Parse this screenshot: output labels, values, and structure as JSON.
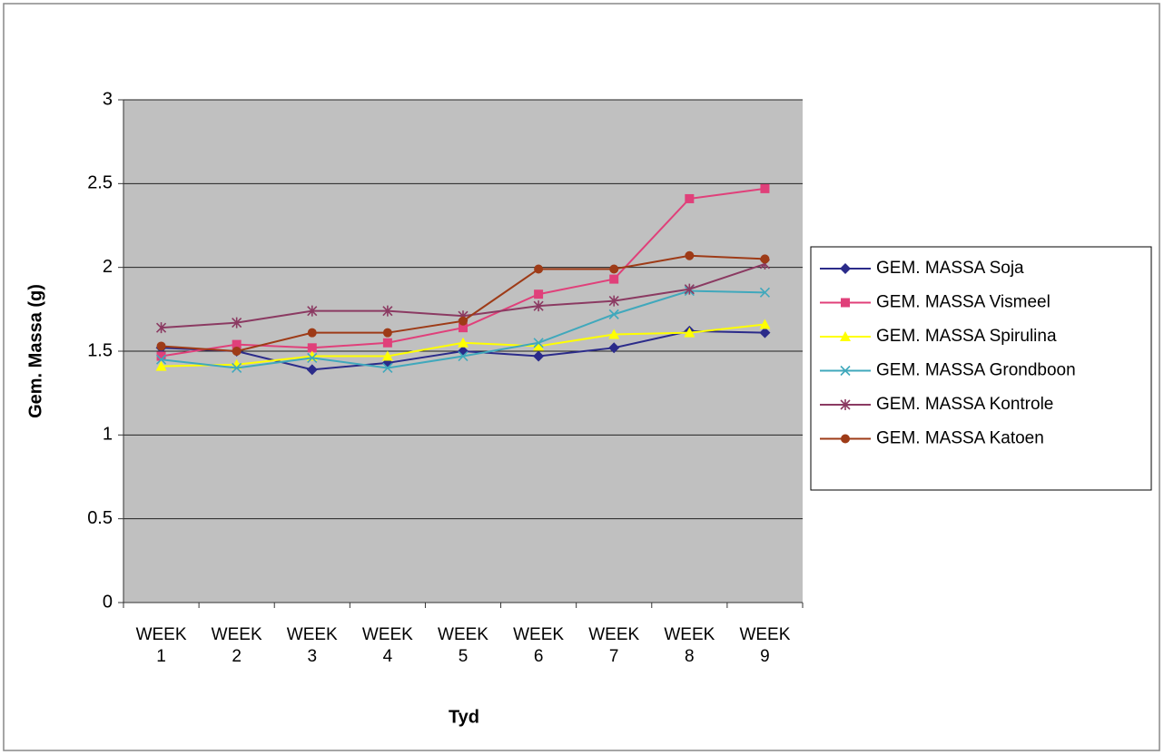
{
  "chart_data": {
    "type": "line",
    "x_label": "Tyd",
    "y_label": "Gem. Massa (g)",
    "categories": [
      "WEEK 1",
      "WEEK 2",
      "WEEK 3",
      "WEEK 4",
      "WEEK 5",
      "WEEK 6",
      "WEEK 7",
      "WEEK 8",
      "WEEK 9"
    ],
    "ylim": [
      0,
      3
    ],
    "yticks": [
      0,
      0.5,
      1,
      1.5,
      2,
      2.5,
      3
    ],
    "grid": true,
    "legend": "right",
    "series": [
      {
        "name": "GEM. MASSA Soja",
        "color": "#2b2b8a",
        "marker": "diamond",
        "values": [
          1.52,
          1.5,
          1.39,
          1.43,
          1.5,
          1.47,
          1.52,
          1.62,
          1.61
        ]
      },
      {
        "name": "GEM. MASSA Vismeel",
        "color": "#e0407a",
        "marker": "square",
        "values": [
          1.47,
          1.54,
          1.52,
          1.55,
          1.64,
          1.84,
          1.93,
          2.41,
          2.47
        ]
      },
      {
        "name": "GEM. MASSA Spirulina",
        "color": "#ffff00",
        "marker": "triangle",
        "values": [
          1.41,
          1.42,
          1.47,
          1.47,
          1.55,
          1.53,
          1.6,
          1.61,
          1.66
        ]
      },
      {
        "name": "GEM. MASSA Grondboon",
        "color": "#40a8bc",
        "marker": "x",
        "values": [
          1.45,
          1.4,
          1.46,
          1.4,
          1.47,
          1.55,
          1.72,
          1.86,
          1.85
        ]
      },
      {
        "name": "GEM. MASSA Kontrole",
        "color": "#8b3a62",
        "marker": "star",
        "values": [
          1.64,
          1.67,
          1.74,
          1.74,
          1.71,
          1.77,
          1.8,
          1.87,
          2.02
        ]
      },
      {
        "name": "GEM. MASSA Katoen",
        "color": "#9e3b17",
        "marker": "circle",
        "values": [
          1.53,
          1.5,
          1.61,
          1.61,
          1.68,
          1.99,
          1.99,
          2.07,
          2.05
        ]
      }
    ]
  }
}
